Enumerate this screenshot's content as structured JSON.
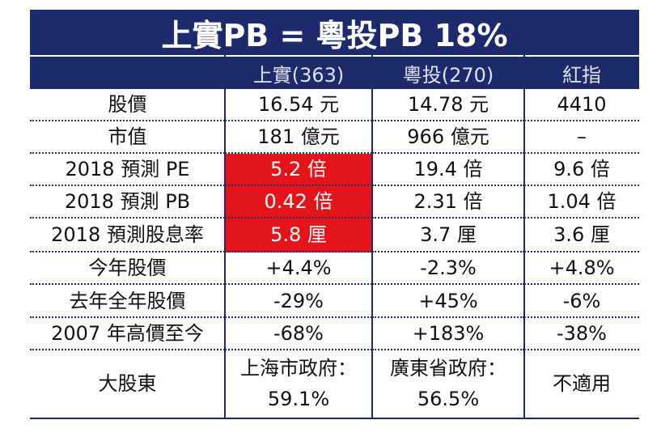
{
  "title": "上實PB = 粵投PB 18%",
  "table": {
    "header": [
      "上實(363)",
      "粵投(270)",
      "紅指"
    ],
    "rows": [
      [
        "股價",
        "16.54 元",
        "14.78 元",
        "4410"
      ],
      [
        "市值",
        "181 億元",
        "966 億元",
        "–"
      ],
      [
        "2018 預測 PE",
        "5.2 倍",
        "19.4 倍",
        "9.6 倍"
      ],
      [
        "2018 預測 PB",
        "0.42 倍",
        "2.31 倍",
        "1.04 倍"
      ],
      [
        "2018 預測股息率",
        "5.8 厘",
        "3.7 厘",
        "3.6 厘"
      ],
      [
        "今年股價",
        "+4.4%",
        "-2.3%",
        "+4.8%"
      ],
      [
        "去年全年股價",
        "-29%",
        "+45%",
        "-6%"
      ],
      [
        "2007 年高價至今",
        "-68%",
        "+183%",
        "-38%"
      ],
      [
        "大股東",
        [
          "上海市政府：",
          "59.1%"
        ],
        [
          "廣東省政府：",
          "56.5%"
        ],
        "不適用"
      ]
    ]
  }
}
